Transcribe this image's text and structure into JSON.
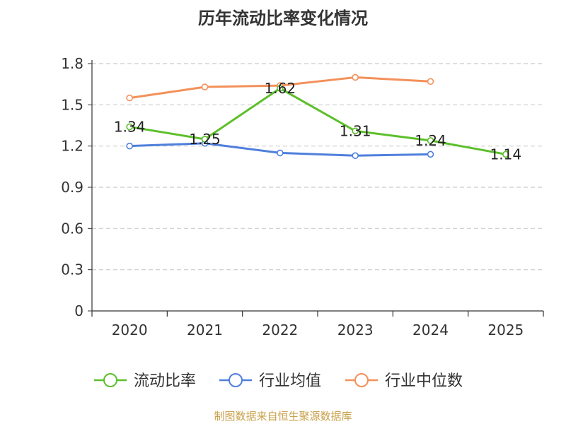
{
  "title": "历年流动比率变化情况",
  "footer": "制图数据来自恒生聚源数据库",
  "colors": {
    "current_ratio": "#5cbf2a",
    "industry_avg": "#4f7fdc",
    "industry_median": "#f4905a",
    "footer": "#c8a04a",
    "grid": "#cccccc",
    "axis": "#333333"
  },
  "chart_data": {
    "type": "line",
    "title": "历年流动比率变化情况",
    "xlabel": "",
    "ylabel": "",
    "categories": [
      "2020",
      "2021",
      "2022",
      "2023",
      "2024",
      "2025"
    ],
    "ylim": [
      0,
      1.8
    ],
    "yticks": [
      "0",
      "0.3",
      "0.6",
      "0.9",
      "1.2",
      "1.5",
      "1.8"
    ],
    "grid": true,
    "legend_position": "bottom",
    "series": [
      {
        "name": "流动比率",
        "key": "current_ratio",
        "values": [
          1.34,
          1.25,
          1.62,
          1.31,
          1.24,
          1.14
        ],
        "labels": [
          "1.34",
          "1.25",
          "1.62",
          "1.31",
          "1.24",
          "1.14"
        ]
      },
      {
        "name": "行业均值",
        "key": "industry_avg",
        "values": [
          1.2,
          1.22,
          1.15,
          1.13,
          1.14,
          null
        ]
      },
      {
        "name": "行业中位数",
        "key": "industry_median",
        "values": [
          1.55,
          1.63,
          1.64,
          1.7,
          1.67,
          null
        ]
      }
    ]
  }
}
